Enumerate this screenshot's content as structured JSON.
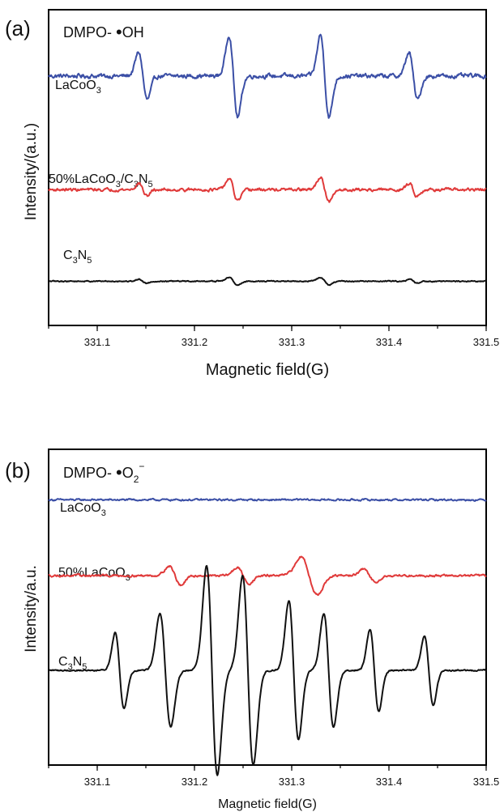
{
  "chart_data": [
    {
      "type": "line",
      "panel": "(a)",
      "annotation": "DMPO- •OH",
      "xlabel": "Magnetic field(G)",
      "ylabel": "Intensity/(a.u.)",
      "xlim": [
        331.05,
        331.5
      ],
      "xticks": [
        "331.1",
        "331.2",
        "331.3",
        "331.4",
        "331.5"
      ],
      "xtick_values": [
        331.1,
        331.2,
        331.3,
        331.4,
        331.5
      ],
      "series": [
        {
          "label": "LaCoO3",
          "color": "#3b4fa6",
          "baseline": 0.79,
          "noise": 0.012,
          "features": [
            {
              "x": 331.147,
              "amp": 0.075,
              "w": 0.0045
            },
            {
              "x": 331.24,
              "amp": 0.13,
              "w": 0.0045
            },
            {
              "x": 331.334,
              "amp": 0.13,
              "w": 0.0045
            },
            {
              "x": 331.425,
              "amp": 0.075,
              "w": 0.0045
            }
          ]
        },
        {
          "label": "50%LaCoO3/C3N5",
          "color": "#e03a3a",
          "baseline": 0.43,
          "noise": 0.008,
          "features": [
            {
              "x": 331.147,
              "amp": 0.02,
              "w": 0.004
            },
            {
              "x": 331.24,
              "amp": 0.035,
              "w": 0.0045
            },
            {
              "x": 331.334,
              "amp": 0.04,
              "w": 0.0045
            },
            {
              "x": 331.425,
              "amp": 0.02,
              "w": 0.004
            }
          ]
        },
        {
          "label": "C3N5",
          "color": "#111111",
          "baseline": 0.14,
          "noise": 0.003,
          "features": [
            {
              "x": 331.147,
              "amp": 0.006,
              "w": 0.004
            },
            {
              "x": 331.24,
              "amp": 0.012,
              "w": 0.0045
            },
            {
              "x": 331.334,
              "amp": 0.012,
              "w": 0.0045
            },
            {
              "x": 331.425,
              "amp": 0.006,
              "w": 0.004
            }
          ]
        }
      ]
    },
    {
      "type": "line",
      "panel": "(b)",
      "annotation": "DMPO- •O2⁻",
      "xlabel": "Magnetic field(G)",
      "ylabel": "Intensity/a.u.",
      "xlim": [
        331.05,
        331.5
      ],
      "xticks": [
        "331.1",
        "331.2",
        "331.3",
        "331.4",
        "331.5"
      ],
      "xtick_values": [
        331.1,
        331.2,
        331.3,
        331.4,
        331.5
      ],
      "series": [
        {
          "label": "LaCoO3",
          "color": "#3b4fa6",
          "baseline": 0.84,
          "noise": 0.005,
          "features": []
        },
        {
          "label": "50%LaCoO3",
          "color": "#e03a3a",
          "baseline": 0.6,
          "noise": 0.006,
          "features": [
            {
              "x": 331.18,
              "amp": 0.03,
              "w": 0.006
            },
            {
              "x": 331.25,
              "amp": 0.025,
              "w": 0.006
            },
            {
              "x": 331.318,
              "amp": 0.06,
              "w": 0.008
            },
            {
              "x": 331.38,
              "amp": 0.02,
              "w": 0.006
            }
          ]
        },
        {
          "label": "C3N5",
          "color": "#111111",
          "baseline": 0.3,
          "noise": 0.004,
          "features": [
            {
              "x": 331.123,
              "amp": 0.12,
              "w": 0.0045
            },
            {
              "x": 331.17,
              "amp": 0.18,
              "w": 0.0055
            },
            {
              "x": 331.218,
              "amp": 0.33,
              "w": 0.0055
            },
            {
              "x": 331.255,
              "amp": 0.3,
              "w": 0.0055
            },
            {
              "x": 331.302,
              "amp": 0.22,
              "w": 0.005
            },
            {
              "x": 331.338,
              "amp": 0.18,
              "w": 0.005
            },
            {
              "x": 331.385,
              "amp": 0.13,
              "w": 0.0045
            },
            {
              "x": 331.441,
              "amp": 0.11,
              "w": 0.0045
            }
          ]
        }
      ]
    }
  ]
}
